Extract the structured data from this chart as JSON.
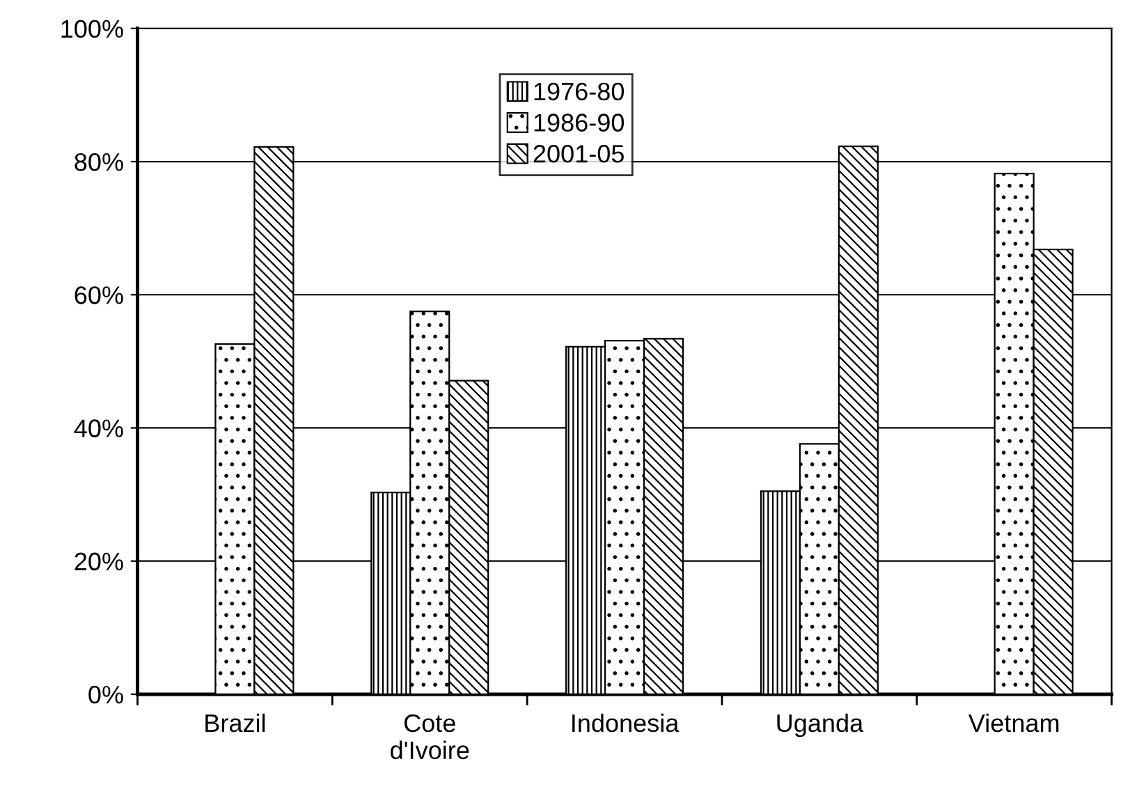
{
  "chart_data": {
    "type": "bar",
    "categories": [
      "Brazil",
      "Cote\nd'Ivoire",
      "Indonesia",
      "Uganda",
      "Vietnam"
    ],
    "series": [
      {
        "name": "1976-80",
        "color": "#000000",
        "values": [
          null,
          30.3,
          52.2,
          30.5,
          null
        ]
      },
      {
        "name": "1986-90",
        "color": "#000000",
        "values": [
          52.6,
          57.5,
          53.1,
          37.6,
          78.2
        ]
      },
      {
        "name": "2001-05",
        "color": "#000000",
        "values": [
          82.2,
          47.1,
          53.4,
          82.3,
          66.8
        ]
      }
    ],
    "ylim": [
      0,
      100
    ],
    "yticks": [
      {
        "value": 0,
        "label": "0%"
      },
      {
        "value": 20,
        "label": "20%"
      },
      {
        "value": 40,
        "label": "40%"
      },
      {
        "value": 60,
        "label": "60%"
      },
      {
        "value": 80,
        "label": "80%"
      },
      {
        "value": 100,
        "label": "100%"
      }
    ],
    "grid": "y",
    "legend": "top"
  }
}
